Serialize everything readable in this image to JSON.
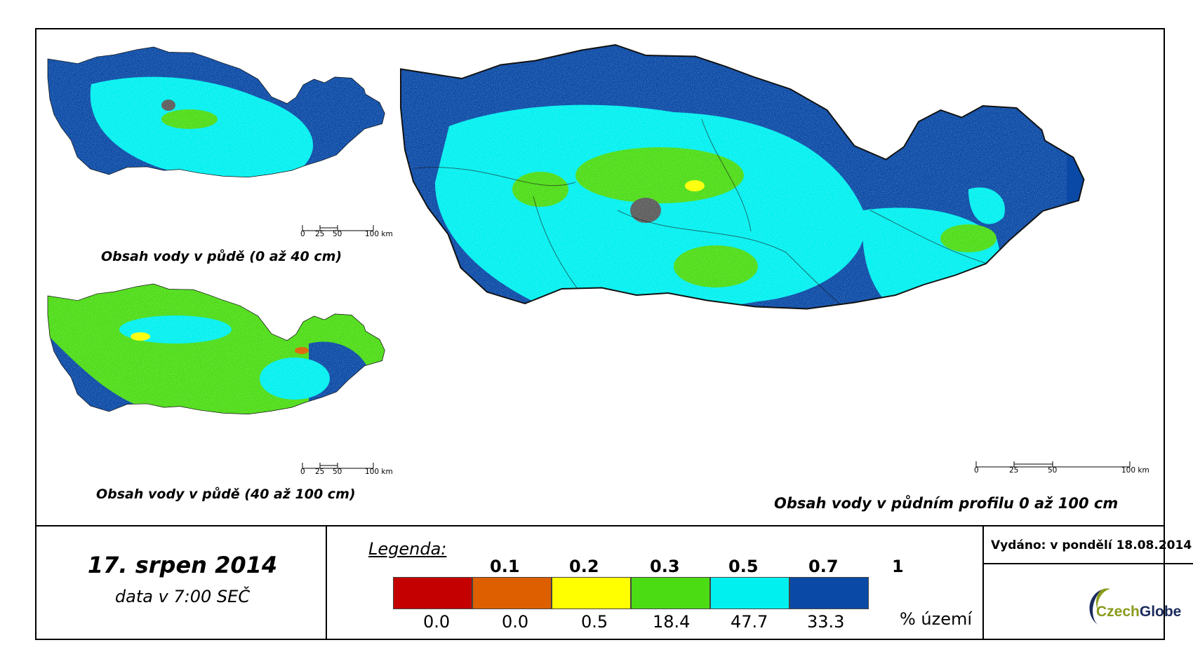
{
  "maps": {
    "main": {
      "caption": "Obsah vody v půdním profilu 0 až 100 cm"
    },
    "top_small": {
      "caption": "Obsah vody v půdě (0 až 40 cm)"
    },
    "bottom_small": {
      "caption": "Obsah vody v půdě (40 až 100 cm)"
    }
  },
  "scalebar": {
    "ticks": [
      "0",
      "25",
      "50",
      "100 km"
    ]
  },
  "footer": {
    "date": "17. srpen 2014",
    "time": "data v 7:00 SEČ",
    "issued": "Vydáno: v pondělí 18.08.2014",
    "logo_text": "CzechGlobe"
  },
  "legend": {
    "title": "Legenda:",
    "thresholds": [
      "0.1",
      "0.2",
      "0.3",
      "0.5",
      "0.7",
      "1"
    ],
    "classes": [
      {
        "color": "#c40000",
        "percent": "0.0"
      },
      {
        "color": "#dd5f00",
        "percent": "0.0"
      },
      {
        "color": "#ffff00",
        "percent": "0.5"
      },
      {
        "color": "#4cdc14",
        "percent": "18.4"
      },
      {
        "color": "#00f0f0",
        "percent": "47.7"
      },
      {
        "color": "#0a4aa6",
        "percent": "33.3"
      }
    ],
    "unit": "% území"
  },
  "colors": {
    "dark_blue": "#0a4aa6",
    "cyan": "#00f0f0",
    "green": "#4cdc14",
    "yellow": "#ffff00",
    "orange": "#dd5f00",
    "red": "#c40000",
    "urban_gray": "#5a5a5a",
    "logo_green": "#8a9a1c",
    "logo_navy": "#1a2a5c"
  }
}
